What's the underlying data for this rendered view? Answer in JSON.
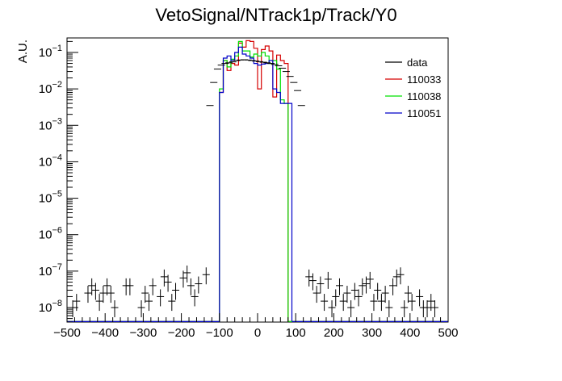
{
  "chart_data": {
    "type": "histogram",
    "title": "VetoSignal/NTrack1p/Track/Y0",
    "ylabel": "A.U.",
    "xlabel": "",
    "xlim": [
      -500,
      500
    ],
    "ylim": [
      4e-09,
      0.25
    ],
    "yscale": "log",
    "bin_width": 10,
    "grid": false,
    "legend_position": "top-right",
    "x_ticks": [
      {
        "value": -500,
        "label": "−500"
      },
      {
        "value": -400,
        "label": "−400"
      },
      {
        "value": -300,
        "label": "−300"
      },
      {
        "value": -200,
        "label": "−200"
      },
      {
        "value": -100,
        "label": "−100"
      },
      {
        "value": 0,
        "label": "0"
      },
      {
        "value": 100,
        "label": "100"
      },
      {
        "value": 200,
        "label": "200"
      },
      {
        "value": 300,
        "label": "300"
      },
      {
        "value": 400,
        "label": "400"
      },
      {
        "value": 500,
        "label": "500"
      }
    ],
    "y_ticks": [
      {
        "value": 1e-08,
        "base": "10",
        "exp": "−8"
      },
      {
        "value": 1e-07,
        "base": "10",
        "exp": "−7"
      },
      {
        "value": 1e-06,
        "base": "10",
        "exp": "−6"
      },
      {
        "value": 1e-05,
        "base": "10",
        "exp": "−5"
      },
      {
        "value": 0.0001,
        "base": "10",
        "exp": "−4"
      },
      {
        "value": 0.001,
        "base": "10",
        "exp": "−3"
      },
      {
        "value": 0.01,
        "base": "10",
        "exp": "−2"
      },
      {
        "value": 0.1,
        "base": "10",
        "exp": "−1"
      }
    ],
    "series": [
      {
        "name": "data",
        "style": "markers",
        "color": "#000000",
        "points": [
          [
            -485,
            1e-08
          ],
          [
            -475,
            1.5e-08
          ],
          [
            -445,
            2.5e-08
          ],
          [
            -435,
            4e-08
          ],
          [
            -425,
            3e-08
          ],
          [
            -415,
            1.5e-08
          ],
          [
            -405,
            2.5e-08
          ],
          [
            -395,
            4e-08
          ],
          [
            -385,
            2.5e-08
          ],
          [
            -375,
            1e-08
          ],
          [
            -345,
            4e-08
          ],
          [
            -335,
            4e-08
          ],
          [
            -305,
            1e-08
          ],
          [
            -295,
            2.5e-08
          ],
          [
            -285,
            1.5e-08
          ],
          [
            -275,
            4e-08
          ],
          [
            -255,
            2e-08
          ],
          [
            -245,
            7e-08
          ],
          [
            -235,
            5e-08
          ],
          [
            -225,
            1.5e-08
          ],
          [
            -215,
            3e-08
          ],
          [
            -195,
            6.5e-08
          ],
          [
            -185,
            9e-08
          ],
          [
            -175,
            4e-08
          ],
          [
            -165,
            2e-08
          ],
          [
            -155,
            4.5e-08
          ],
          [
            -135,
            8e-08
          ],
          [
            -125,
            0.0035
          ],
          [
            -115,
            0.015
          ],
          [
            -105,
            0.035
          ],
          [
            -95,
            0.045
          ],
          [
            -85,
            0.05
          ],
          [
            -75,
            0.052
          ],
          [
            -65,
            0.055
          ],
          [
            -55,
            0.06
          ],
          [
            -45,
            0.062
          ],
          [
            -35,
            0.063
          ],
          [
            -25,
            0.062
          ],
          [
            -15,
            0.06
          ],
          [
            -5,
            0.058
          ],
          [
            5,
            0.056
          ],
          [
            15,
            0.054
          ],
          [
            25,
            0.052
          ],
          [
            35,
            0.05
          ],
          [
            45,
            0.047
          ],
          [
            55,
            0.043
          ],
          [
            65,
            0.037
          ],
          [
            75,
            0.03
          ],
          [
            85,
            0.022
          ],
          [
            95,
            0.015
          ],
          [
            105,
            0.009
          ],
          [
            115,
            0.0035
          ],
          [
            135,
            7e-08
          ],
          [
            145,
            5.5e-08
          ],
          [
            155,
            2.5e-08
          ],
          [
            165,
            4.5e-08
          ],
          [
            175,
            1.5e-08
          ],
          [
            185,
            6e-08
          ],
          [
            195,
            1e-08
          ],
          [
            205,
            2e-08
          ],
          [
            215,
            4e-08
          ],
          [
            225,
            1.5e-08
          ],
          [
            235,
            2.5e-08
          ],
          [
            245,
            1e-08
          ],
          [
            255,
            3e-08
          ],
          [
            265,
            2e-08
          ],
          [
            275,
            4e-08
          ],
          [
            285,
            4.5e-08
          ],
          [
            295,
            6e-08
          ],
          [
            305,
            1.5e-08
          ],
          [
            315,
            3e-08
          ],
          [
            325,
            1.5e-08
          ],
          [
            335,
            2.5e-08
          ],
          [
            345,
            1e-08
          ],
          [
            355,
            4e-08
          ],
          [
            365,
            7e-08
          ],
          [
            375,
            8e-08
          ],
          [
            385,
            1e-08
          ],
          [
            395,
            2.5e-08
          ],
          [
            405,
            1.5e-08
          ],
          [
            425,
            2e-08
          ],
          [
            435,
            1e-08
          ],
          [
            445,
            1e-08
          ],
          [
            455,
            1.5e-08
          ],
          [
            465,
            1e-08
          ]
        ]
      },
      {
        "name": "110033",
        "style": "step",
        "color": "#d50000",
        "bins": [
          [
            -100,
            0.008
          ],
          [
            -90,
            0.06
          ],
          [
            -80,
            0.032
          ],
          [
            -70,
            0.05
          ],
          [
            -60,
            0.045
          ],
          [
            -50,
            0.18
          ],
          [
            -40,
            0.14
          ],
          [
            -30,
            0.21
          ],
          [
            -20,
            0.2
          ],
          [
            -10,
            0.13
          ],
          [
            0,
            0.01
          ],
          [
            10,
            0.12
          ],
          [
            20,
            0.15
          ],
          [
            30,
            0.11
          ],
          [
            40,
            0.006
          ],
          [
            50,
            0.085
          ],
          [
            60,
            0.06
          ],
          [
            70,
            0.05
          ]
        ]
      },
      {
        "name": "110038",
        "style": "step",
        "color": "#00e000",
        "bins": [
          [
            -100,
            0.01
          ],
          [
            -90,
            0.06
          ],
          [
            -80,
            0.04
          ],
          [
            -70,
            0.065
          ],
          [
            -60,
            0.08
          ],
          [
            -50,
            0.2
          ],
          [
            -40,
            0.11
          ],
          [
            -30,
            0.11
          ],
          [
            -20,
            0.075
          ],
          [
            -10,
            0.09
          ],
          [
            0,
            0.08
          ],
          [
            10,
            0.1
          ],
          [
            20,
            0.08
          ],
          [
            30,
            0.05
          ],
          [
            40,
            0.06
          ],
          [
            50,
            0.035
          ],
          [
            60,
            0.005
          ],
          [
            70,
            0.004
          ]
        ]
      },
      {
        "name": "110051",
        "style": "step",
        "color": "#0000c8",
        "bins": [
          [
            -100,
            0.008
          ],
          [
            -90,
            0.07
          ],
          [
            -80,
            0.08
          ],
          [
            -70,
            0.06
          ],
          [
            -60,
            0.1
          ],
          [
            -50,
            0.14
          ],
          [
            -40,
            0.09
          ],
          [
            -30,
            0.08
          ],
          [
            -20,
            0.07
          ],
          [
            -10,
            0.05
          ],
          [
            0,
            0.045
          ],
          [
            10,
            0.048
          ],
          [
            20,
            0.05
          ],
          [
            30,
            0.06
          ],
          [
            40,
            0.01
          ],
          [
            50,
            0.008
          ],
          [
            60,
            0.004
          ],
          [
            70,
            0.004
          ],
          [
            80,
            0.004
          ]
        ]
      }
    ]
  }
}
